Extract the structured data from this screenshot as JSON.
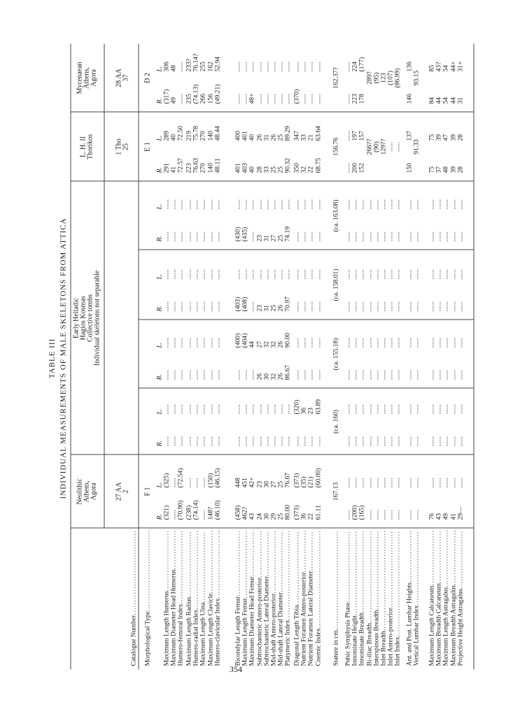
{
  "page_number": "354",
  "title": "TABLE III",
  "subtitle": "INDIVIDUAL MEASUREMENTS OF MALE SKELETONS FROM ATTICA",
  "row_labels": {
    "catalogue": "Catalogue Number",
    "type": "Morphological Type"
  },
  "groups": [
    {
      "lines": [
        "Neolithic",
        "Athens,",
        "Agora"
      ]
    },
    {
      "lines": [
        "Early Helladic",
        "Hagios Kosmas",
        "Collective tombs",
        "Individual skeletons not separable"
      ]
    },
    {
      "lines": [
        "L. H. II",
        "Thorikos"
      ]
    },
    {
      "lines": [
        "Mycenaean",
        "Athens,",
        "Agora"
      ]
    }
  ],
  "specimens": [
    {
      "catalogue": [
        "27 AA",
        "2"
      ],
      "type": "F 1",
      "sides": [
        "R.",
        "L."
      ]
    },
    {
      "sides": [
        "R.",
        "L."
      ]
    },
    {
      "sides": [
        "R.",
        "L."
      ]
    },
    {
      "sides": [
        "R.",
        "L."
      ]
    },
    {
      "sides": [
        "R.",
        "L."
      ]
    },
    {
      "catalogue": [
        "1 Tho",
        "25"
      ],
      "type": "E 1",
      "sides": [
        "R.",
        "L."
      ]
    },
    {
      "catalogue": [
        "28 AA",
        "37"
      ],
      "type": "D 2",
      "sides": [
        "R.",
        "L."
      ]
    }
  ],
  "rows": [
    {
      "label": "Maximum Length Humerus",
      "cells": [
        [
          "(321)",
          "(325)"
        ],
        [
          "......",
          "......"
        ],
        [
          "......",
          "......"
        ],
        [
          "......",
          "......"
        ],
        [
          "......",
          "......"
        ],
        [
          "291",
          "289"
        ],
        [
          "(317)",
          "306"
        ]
      ]
    },
    {
      "label": "Maximum Diameter Head Humerus",
      "cells": [
        [
          "......",
          "......"
        ],
        [
          "......",
          "......"
        ],
        [
          "......",
          "......"
        ],
        [
          "......",
          "......"
        ],
        [
          "......",
          "......"
        ],
        [
          "41",
          "40"
        ],
        [
          "49",
          "48"
        ]
      ]
    },
    {
      "label": "Humero-femoral Index",
      "cells": [
        [
          "(70.90)",
          "(72.54)"
        ],
        [
          "......",
          "......"
        ],
        [
          "......",
          "......"
        ],
        [
          "......",
          "......"
        ],
        [
          "......",
          "......"
        ],
        [
          "72.57",
          "72.50"
        ],
        [
          "......",
          "......"
        ]
      ]
    },
    {
      "label": "Maximum Length Radius",
      "cells": [
        [
          "(238)",
          "......"
        ],
        [
          "......",
          "......"
        ],
        [
          "......",
          "......"
        ],
        [
          "......",
          "......"
        ],
        [
          "......",
          "......"
        ],
        [
          "223",
          "219"
        ],
        [
          "235",
          "233?"
        ]
      ]
    },
    {
      "label": "Humero-radial Index",
      "cells": [
        [
          "(74.14)",
          "......"
        ],
        [
          "......",
          "......"
        ],
        [
          "......",
          "......"
        ],
        [
          "......",
          "......"
        ],
        [
          "......",
          "......"
        ],
        [
          "76.63",
          "75.78"
        ],
        [
          "(74.13)",
          "76.14?"
        ]
      ]
    },
    {
      "label": "Maximum Length Ulna",
      "cells": [
        [
          "......",
          "......"
        ],
        [
          "......",
          "......"
        ],
        [
          "......",
          "......"
        ],
        [
          "......",
          "......"
        ],
        [
          "......",
          "......"
        ],
        [
          "270",
          "270"
        ],
        [
          "266",
          "255"
        ]
      ]
    },
    {
      "label": "Maximum Length Clavicle",
      "cells": [
        [
          "148?",
          "(150)"
        ],
        [
          "......",
          "......"
        ],
        [
          "......",
          "......"
        ],
        [
          "......",
          "......"
        ],
        [
          "......",
          "......"
        ],
        [
          "140",
          "140"
        ],
        [
          "156",
          "162"
        ]
      ]
    },
    {
      "label": "Humero-clavicular Index",
      "cells": [
        [
          "(46.10)",
          "(46.15)"
        ],
        [
          "......",
          "......"
        ],
        [
          "......",
          "......"
        ],
        [
          "......",
          "......"
        ],
        [
          "......",
          "......"
        ],
        [
          "48.11",
          "48.44"
        ],
        [
          "(49.21)",
          "52.94"
        ]
      ]
    },
    {
      "label": "Bicondylar Length Femur",
      "cells": [
        [
          "(458)",
          "448"
        ],
        [
          "......",
          "......"
        ],
        [
          "......",
          "(400)"
        ],
        [
          "(403)",
          "......"
        ],
        [
          "(430)",
          "......"
        ],
        [
          "401",
          "400"
        ],
        [
          "......",
          "......"
        ]
      ]
    },
    {
      "label": "Maximum Length Femur",
      "cells": [
        [
          "462?",
          "451"
        ],
        [
          "......",
          "......"
        ],
        [
          "......",
          "(404)"
        ],
        [
          "(408)",
          "......"
        ],
        [
          "(435)",
          "......"
        ],
        [
          "403",
          "401"
        ],
        [
          "......",
          "......"
        ]
      ]
    },
    {
      "label": "Maximum Diameter Head Femur",
      "cells": [
        [
          "43",
          "42+"
        ],
        [
          "......",
          "......"
        ],
        [
          "......",
          "44"
        ],
        [
          "......",
          "......"
        ],
        [
          "......",
          "......"
        ],
        [
          "40",
          "40"
        ],
        [
          "48+",
          "......"
        ]
      ]
    },
    {
      "label": "Subtrochanteric Antero-posterior",
      "cells": [
        [
          "24",
          "23"
        ],
        [
          "......",
          "......"
        ],
        [
          "26",
          "27"
        ],
        [
          "23",
          "......"
        ],
        [
          "23",
          "......"
        ],
        [
          "28",
          "26"
        ],
        [
          "......",
          "......"
        ]
      ]
    },
    {
      "label": "Subtrochanteric Lateral Diameter",
      "cells": [
        [
          "30",
          "30"
        ],
        [
          "......",
          "......"
        ],
        [
          "30",
          "32"
        ],
        [
          "31",
          "......"
        ],
        [
          "31",
          "......"
        ],
        [
          "33",
          "31"
        ],
        [
          "......",
          "......"
        ]
      ]
    },
    {
      "label": "Mid-shaft Antero-posterior",
      "cells": [
        [
          "29",
          "27"
        ],
        [
          "......",
          "......"
        ],
        [
          "32",
          "32"
        ],
        [
          "25",
          "......"
        ],
        [
          "27",
          "......"
        ],
        [
          "25",
          "26"
        ],
        [
          "......",
          "......"
        ]
      ]
    },
    {
      "label": "Mid-shaft Lateral Diameter",
      "cells": [
        [
          "25",
          "25"
        ],
        [
          "......",
          "......"
        ],
        [
          "26",
          "26"
        ],
        [
          "26",
          "......"
        ],
        [
          "25",
          "......"
        ],
        [
          "25",
          "25"
        ],
        [
          "......",
          "......"
        ]
      ]
    },
    {
      "label": "Platymeric Index",
      "cells": [
        [
          "80.00",
          "76.67"
        ],
        [
          "......",
          "......"
        ],
        [
          "86.67",
          "90.00"
        ],
        [
          "70.97",
          "......"
        ],
        [
          "74.19",
          "......"
        ],
        [
          "90.32",
          "89.29"
        ],
        [
          "......",
          "......"
        ]
      ]
    },
    {
      "label": "Diagonal Length Tibia",
      "cells": [
        [
          "(373)",
          "(373)"
        ],
        [
          "......",
          "(320)"
        ],
        [
          "......",
          "......"
        ],
        [
          "......",
          "......"
        ],
        [
          "......",
          "......"
        ],
        [
          "350",
          "347"
        ],
        [
          "(370)",
          "......"
        ]
      ]
    },
    {
      "label": "Nutrient Foramen Antero-posterior",
      "cells": [
        [
          "36",
          "(35)"
        ],
        [
          "......",
          "36"
        ],
        [
          "......",
          "......"
        ],
        [
          "......",
          "......"
        ],
        [
          "......",
          "......"
        ],
        [
          "32",
          "33"
        ],
        [
          "......",
          "......"
        ]
      ]
    },
    {
      "label": "Nutrient Foramen Lateral Diameter",
      "cells": [
        [
          "22",
          "(21)"
        ],
        [
          "......",
          "23"
        ],
        [
          "......",
          "......"
        ],
        [
          "......",
          "......"
        ],
        [
          "......",
          "......"
        ],
        [
          "22",
          "21"
        ],
        [
          "......",
          "......"
        ]
      ]
    },
    {
      "label": "Cnemic Index",
      "cells": [
        [
          "61.11",
          "(60.00)"
        ],
        [
          "......",
          "63.89"
        ],
        [
          "......",
          "......"
        ],
        [
          "......",
          "......"
        ],
        [
          "......",
          "......"
        ],
        [
          "68.75",
          "63.64"
        ],
        [
          "......",
          "......"
        ]
      ]
    },
    {
      "label": "Stature in cm.",
      "cells": [
        "167.13",
        "(ca. 160)",
        "(ca. 155.18)",
        "(ca. 158.01)",
        "(ca. 163.08)",
        "156.76",
        "162.37?"
      ]
    },
    {
      "label": "Pubic Symphysis Phase",
      "cells": [
        [
          "......",
          "......"
        ],
        [
          "......",
          "......"
        ],
        [
          "......",
          "......"
        ],
        [
          "......",
          "......"
        ],
        [
          "......",
          "......"
        ],
        [
          "......",
          "......"
        ],
        [
          "......",
          "......"
        ]
      ]
    },
    {
      "label": "Innominate Height",
      "cells": [
        [
          "(200)",
          "......"
        ],
        [
          "......",
          "......"
        ],
        [
          "......",
          "......"
        ],
        [
          "......",
          "......"
        ],
        [
          "......",
          "......"
        ],
        [
          "200",
          "197"
        ],
        [
          "223",
          "224"
        ]
      ]
    },
    {
      "label": "Innominate Breadth",
      "cells": [
        [
          "(165)",
          "......"
        ],
        [
          "......",
          "......"
        ],
        [
          "......",
          "......"
        ],
        [
          "......",
          "......"
        ],
        [
          "......",
          "......"
        ],
        [
          "152",
          "157"
        ],
        [
          "178",
          "(177)"
        ]
      ]
    },
    {
      "label": "Bi-iliac Breadth",
      "cells": [
        [
          "......",
          "......"
        ],
        [
          "......",
          "......"
        ],
        [
          "......",
          "......"
        ],
        [
          "......",
          "......"
        ],
        [
          "......",
          "......"
        ],
        "266??",
        "289?"
      ]
    },
    {
      "label": "Interspinous Breadth",
      "cells": [
        [
          "......",
          "......"
        ],
        [
          "......",
          "......"
        ],
        [
          "......",
          "......"
        ],
        [
          "......",
          "......"
        ],
        [
          "......",
          "......"
        ],
        "(90)",
        "(95)"
      ]
    },
    {
      "label": "Inlet Breadth",
      "cells": [
        [
          "......",
          "......"
        ],
        [
          "......",
          "......"
        ],
        [
          "......",
          "......"
        ],
        [
          "......",
          "......"
        ],
        [
          "......",
          "......"
        ],
        "129??",
        "123"
      ]
    },
    {
      "label": "Inlet Antero-posterior",
      "cells": [
        [
          "......",
          "......"
        ],
        [
          "......",
          "......"
        ],
        [
          "......",
          "......"
        ],
        [
          "......",
          "......"
        ],
        [
          "......",
          "......"
        ],
        "......",
        "(107)"
      ]
    },
    {
      "label": "Inlet Index",
      "cells": [
        [
          "......",
          "......"
        ],
        [
          "......",
          "......"
        ],
        [
          "......",
          "......"
        ],
        [
          "......",
          "......"
        ],
        [
          "......",
          "......"
        ],
        "......",
        "(86.99)"
      ]
    },
    {
      "label": "Ant. and Post. Lumbar Heights",
      "cells": [
        [
          "......",
          "......"
        ],
        [
          "......",
          "......"
        ],
        [
          "......",
          "......"
        ],
        [
          "......",
          "......"
        ],
        [
          "......",
          "......"
        ],
        [
          "150",
          "137"
        ],
        [
          "146",
          "136"
        ]
      ]
    },
    {
      "label": "Vertical Lumbar Index",
      "cells": [
        [
          "......",
          "......"
        ],
        [
          "......",
          "......"
        ],
        [
          "......",
          "......"
        ],
        [
          "......",
          "......"
        ],
        [
          "......",
          "......"
        ],
        "91.33",
        "93.15"
      ]
    },
    {
      "label": "Maximum Length Calcaneum",
      "cells": [
        [
          "76",
          "......"
        ],
        [
          "......",
          "......"
        ],
        [
          "......",
          "......"
        ],
        [
          "......",
          "......"
        ],
        [
          "......",
          "......"
        ],
        [
          "75",
          "75"
        ],
        [
          "84",
          "85"
        ]
      ]
    },
    {
      "label": "Maximum Breadth Calcaneum",
      "cells": [
        [
          "43",
          "......"
        ],
        [
          "......",
          "......"
        ],
        [
          "......",
          "......"
        ],
        [
          "......",
          "......"
        ],
        [
          "......",
          "......"
        ],
        [
          "37",
          "39"
        ],
        [
          "44",
          "43?"
        ]
      ]
    },
    {
      "label": "Maximum Length Astragalus",
      "cells": [
        [
          "49",
          "......"
        ],
        [
          "......",
          "......"
        ],
        [
          "......",
          "......"
        ],
        [
          "......",
          "......"
        ],
        [
          "......",
          "......"
        ],
        [
          "48",
          "47"
        ],
        [
          "54",
          "54"
        ]
      ]
    },
    {
      "label": "Maximum Breadth Astragalus",
      "cells": [
        [
          "41",
          "......"
        ],
        [
          "......",
          "......"
        ],
        [
          "......",
          "......"
        ],
        [
          "......",
          "......"
        ],
        [
          "......",
          "......"
        ],
        [
          "39",
          "39"
        ],
        [
          "44",
          "44+"
        ]
      ]
    },
    {
      "label": "Projective Height Astragalus",
      "cells": [
        [
          "29—",
          "......"
        ],
        [
          "......",
          "......"
        ],
        [
          "......",
          "......"
        ],
        [
          "......",
          "......"
        ],
        [
          "......",
          "......"
        ],
        [
          "28",
          "28"
        ],
        [
          "31",
          "31+"
        ]
      ]
    }
  ]
}
